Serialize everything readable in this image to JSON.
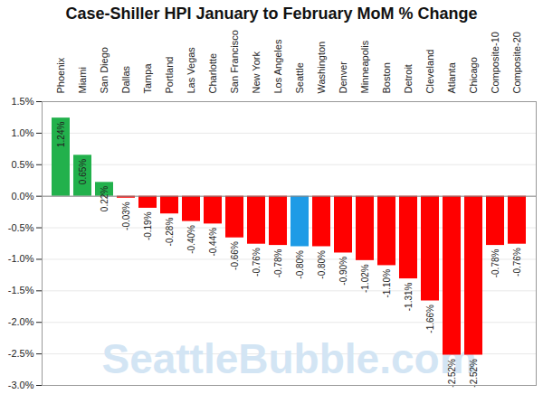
{
  "chart_data": {
    "type": "bar",
    "title": "Case-Shiller HPI January to February MoM % Change",
    "categories": [
      "Phoenix",
      "Miami",
      "San Diego",
      "Dallas",
      "Tampa",
      "Portland",
      "Las Vegas",
      "Charlotte",
      "San Francisco",
      "New York",
      "Los Angeles",
      "Seattle",
      "Washington",
      "Denver",
      "Minneapolis",
      "Boston",
      "Detroit",
      "Cleveland",
      "Atlanta",
      "Chicago",
      "Composite-10",
      "Composite-20"
    ],
    "values": [
      1.24,
      0.65,
      0.22,
      -0.03,
      -0.19,
      -0.28,
      -0.4,
      -0.44,
      -0.66,
      -0.76,
      -0.78,
      -0.8,
      -0.8,
      -0.9,
      -1.02,
      -1.1,
      -1.31,
      -1.66,
      -2.52,
      -2.52,
      -0.78,
      -0.76
    ],
    "value_labels": [
      "1.24%",
      "0.65%",
      "0.22%",
      "-0.03%",
      "-0.19%",
      "-0.28%",
      "-0.40%",
      "-0.44%",
      "-0.66%",
      "-0.76%",
      "-0.78%",
      "-0.80%",
      "-0.80%",
      "-0.90%",
      "-1.02%",
      "-1.10%",
      "-1.31%",
      "-1.66%",
      "-2.52%",
      "-2.52%",
      "-0.78%",
      "-0.76%"
    ],
    "colors": [
      "#22b14c",
      "#22b14c",
      "#22b14c",
      "#ff0000",
      "#ff0000",
      "#ff0000",
      "#ff0000",
      "#ff0000",
      "#ff0000",
      "#ff0000",
      "#ff0000",
      "#1e9be6",
      "#ff0000",
      "#ff0000",
      "#ff0000",
      "#ff0000",
      "#ff0000",
      "#ff0000",
      "#ff0000",
      "#ff0000",
      "#ff0000",
      "#ff0000"
    ],
    "ylim": [
      -3,
      1.5
    ],
    "yticks": [
      {
        "value": -3,
        "label": "-3.0%"
      },
      {
        "value": -2.5,
        "label": "-2.5%"
      },
      {
        "value": -2,
        "label": "-2.0%"
      },
      {
        "value": -1.5,
        "label": "-1.5%"
      },
      {
        "value": -1,
        "label": "-1.0%"
      },
      {
        "value": -0.5,
        "label": "-0.5%"
      },
      {
        "value": 0,
        "label": "0.0%"
      },
      {
        "value": 0.5,
        "label": "0.5%"
      },
      {
        "value": 1,
        "label": "1.0%"
      },
      {
        "value": 1.5,
        "label": "1.5%"
      }
    ],
    "grid": true,
    "data_labels": true,
    "annotations": [
      "SeattleBubble.com"
    ]
  }
}
